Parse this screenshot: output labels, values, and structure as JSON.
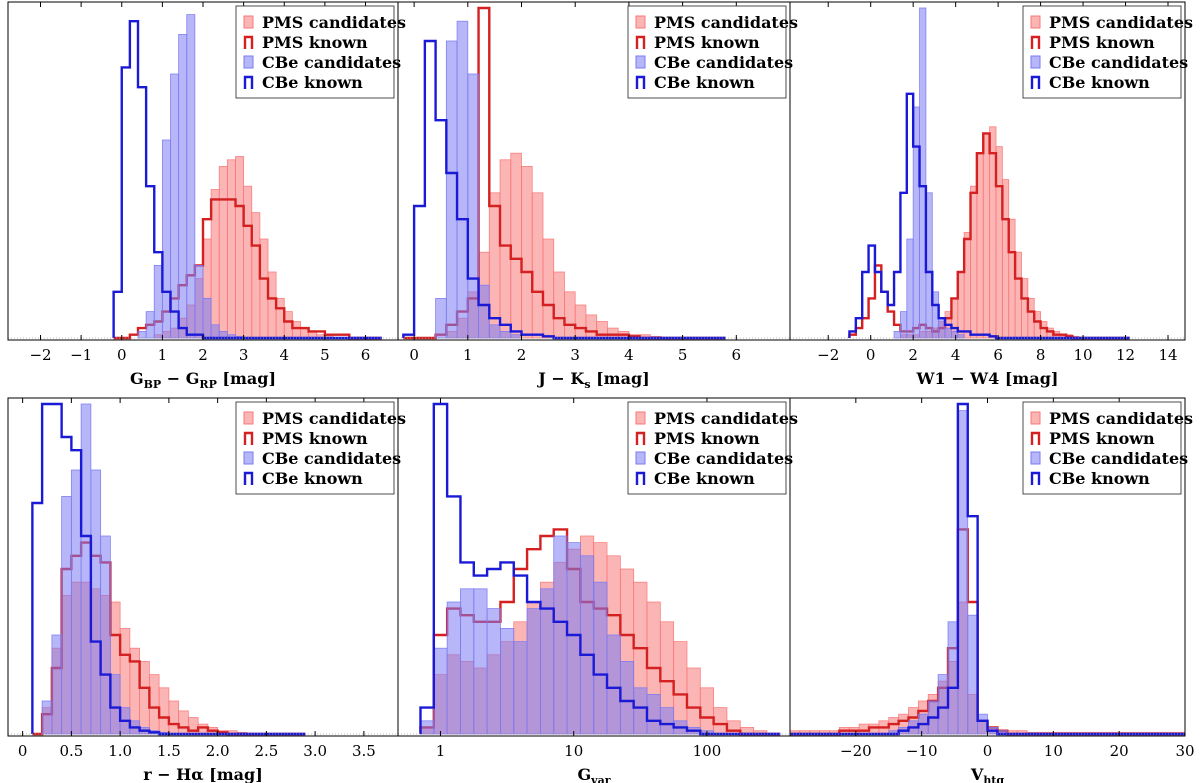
{
  "legend_labels": [
    "PMS candidates",
    "PMS known",
    "CBe candidates",
    "CBe known"
  ],
  "colors": {
    "pms_fill": "#f87878",
    "pms_edge": "#d42020",
    "cbe_fill": "#7a7af2",
    "cbe_edge": "#1a1ad6",
    "overlap": "#8a4aa4"
  },
  "chart_data": [
    {
      "type": "bar",
      "subtype": "histogram",
      "xlabel_main": "G",
      "xlabel_sub1": "BP",
      "xlabel_mid": " − G",
      "xlabel_sub2": "RP",
      "xlabel_unit": " [mag]",
      "xlim": [
        -2.8,
        6.8
      ],
      "ylim": [
        0,
        100
      ],
      "xticks": [
        -2,
        -1,
        0,
        1,
        2,
        3,
        4,
        5,
        6
      ],
      "xtick_labels": [
        "−2",
        "−1",
        "0",
        "1",
        "2",
        "3",
        "4",
        "5",
        "6"
      ],
      "series": [
        {
          "name": "PMS candidates",
          "kind": "filled",
          "x0": -0.2,
          "binw": 0.2,
          "values": [
            0,
            0,
            0,
            0,
            0,
            1,
            2,
            3,
            6,
            10,
            18,
            30,
            45,
            52,
            54,
            55,
            46,
            38,
            30,
            20,
            12,
            8,
            5,
            3,
            2,
            1,
            1,
            0,
            0,
            0,
            0,
            0,
            0
          ]
        },
        {
          "name": "PMS known",
          "kind": "step",
          "x0": -0.2,
          "binw": 0.2,
          "values": [
            0,
            0,
            1,
            3,
            4,
            5,
            8,
            12,
            16,
            19,
            22,
            36,
            42,
            42,
            42,
            40,
            34,
            28,
            18,
            12,
            9,
            5,
            3,
            3,
            2,
            2,
            1,
            1,
            1,
            0,
            0,
            0,
            0
          ]
        },
        {
          "name": "CBe candidates",
          "kind": "filled",
          "x0": -0.2,
          "binw": 0.2,
          "values": [
            0,
            0,
            0,
            2,
            8,
            22,
            60,
            80,
            92,
            98,
            22,
            12,
            4,
            2,
            1,
            0.5,
            0,
            0,
            0,
            0,
            0,
            0,
            0,
            0,
            0,
            0,
            0,
            0,
            0,
            0,
            0,
            0,
            0
          ]
        },
        {
          "name": "CBe known",
          "kind": "step",
          "x0": -0.2,
          "binw": 0.2,
          "values": [
            14,
            82,
            96,
            76,
            46,
            26,
            14,
            8,
            3,
            1,
            1,
            0,
            0,
            0,
            0,
            0,
            0,
            0,
            0,
            0,
            0,
            0,
            0,
            0,
            0,
            0,
            0,
            0,
            0,
            0,
            0,
            0,
            0
          ]
        }
      ]
    },
    {
      "type": "bar",
      "subtype": "histogram",
      "xlabel_main": "J − K",
      "xlabel_sub1": "s",
      "xlabel_mid": "",
      "xlabel_sub2": "",
      "xlabel_unit": " [mag]",
      "xlim": [
        -0.3,
        7.0
      ],
      "ylim": [
        0,
        100
      ],
      "xticks": [
        0,
        1,
        2,
        3,
        4,
        5,
        6
      ],
      "xtick_labels": [
        "0",
        "1",
        "2",
        "3",
        "4",
        "5",
        "6"
      ],
      "series": [
        {
          "name": "PMS candidates",
          "kind": "filled",
          "x0": -0.2,
          "binw": 0.2,
          "values": [
            0,
            0,
            0,
            0,
            2,
            6,
            14,
            26,
            44,
            54,
            56,
            52,
            44,
            30,
            20,
            14,
            10,
            7,
            5,
            3,
            2,
            1,
            1,
            0.5,
            0,
            0,
            0,
            0,
            0,
            0
          ]
        },
        {
          "name": "PMS known",
          "kind": "step",
          "x0": -0.2,
          "binw": 0.2,
          "values": [
            0,
            0,
            0,
            1,
            4,
            8,
            12,
            100,
            40,
            28,
            24,
            20,
            14,
            10,
            6,
            4,
            3,
            2,
            1,
            1,
            1,
            0.5,
            0,
            0,
            0,
            0,
            0,
            0,
            0,
            0
          ]
        },
        {
          "name": "CBe candidates",
          "kind": "filled",
          "x0": -0.2,
          "binw": 0.2,
          "values": [
            0,
            0,
            0,
            12,
            90,
            96,
            80,
            16,
            4,
            2,
            1,
            0,
            0,
            0,
            0,
            0,
            0,
            0,
            0,
            0,
            0,
            0,
            0,
            0,
            0,
            0,
            0,
            0,
            0,
            0
          ]
        },
        {
          "name": "CBe known",
          "kind": "step",
          "x0": -0.2,
          "binw": 0.2,
          "values": [
            1,
            40,
            90,
            66,
            50,
            36,
            18,
            10,
            6,
            4,
            2,
            1,
            1,
            0.5,
            0,
            0,
            0,
            0,
            0,
            0,
            0,
            0,
            0,
            0,
            0,
            0,
            0,
            0,
            0,
            0
          ]
        }
      ]
    },
    {
      "type": "bar",
      "subtype": "histogram",
      "xlabel_main": "W1 − W4",
      "xlabel_sub1": "",
      "xlabel_mid": "",
      "xlabel_sub2": "",
      "xlabel_unit": " [mag]",
      "xlim": [
        -3.8,
        14.8
      ],
      "ylim": [
        0,
        100
      ],
      "xticks": [
        -2,
        0,
        2,
        4,
        6,
        8,
        10,
        12,
        14
      ],
      "xtick_labels": [
        "−2",
        "0",
        "2",
        "4",
        "6",
        "8",
        "10",
        "12",
        "14"
      ],
      "series": [
        {
          "name": "PMS candidates",
          "kind": "filled",
          "x0": -1.0,
          "binw": 0.3,
          "values": [
            0,
            0,
            0,
            0,
            0,
            0,
            0,
            0,
            1,
            1,
            1,
            2,
            2,
            3,
            5,
            8,
            12,
            20,
            32,
            46,
            56,
            62,
            64,
            58,
            48,
            36,
            26,
            18,
            12,
            8,
            5,
            3,
            2,
            1,
            1,
            0.5,
            0,
            0,
            0,
            0,
            0,
            0,
            0,
            0
          ]
        },
        {
          "name": "PMS known",
          "kind": "step",
          "x0": -1.0,
          "binw": 0.3,
          "values": [
            1,
            3,
            6,
            12,
            22,
            14,
            8,
            4,
            2,
            2,
            3,
            4,
            3,
            2,
            3,
            6,
            12,
            20,
            30,
            44,
            56,
            62,
            56,
            46,
            36,
            26,
            18,
            12,
            8,
            5,
            3,
            2,
            1,
            1,
            0.5,
            0,
            0,
            0,
            0,
            0,
            0,
            0,
            0,
            0
          ]
        },
        {
          "name": "CBe candidates",
          "kind": "filled",
          "x0": -1.0,
          "binw": 0.3,
          "values": [
            0,
            0,
            0,
            0,
            0,
            0,
            0,
            2,
            8,
            30,
            70,
            100,
            44,
            14,
            6,
            3,
            2,
            1,
            0,
            0,
            0,
            0,
            0,
            0,
            0,
            0,
            0,
            0,
            0,
            0,
            0,
            0,
            0,
            0,
            0,
            0,
            0,
            0,
            0,
            0,
            0,
            0,
            0,
            0
          ]
        },
        {
          "name": "CBe known",
          "kind": "step",
          "x0": -1.0,
          "binw": 0.3,
          "values": [
            2,
            6,
            20,
            28,
            20,
            14,
            10,
            20,
            44,
            74,
            58,
            46,
            20,
            10,
            6,
            4,
            3,
            2,
            2,
            1,
            1,
            1,
            0.5,
            0,
            0,
            0,
            0,
            0,
            0,
            0,
            0,
            0,
            0,
            0,
            0,
            0,
            0,
            0,
            0,
            0,
            0,
            0,
            0,
            0
          ]
        }
      ]
    },
    {
      "type": "bar",
      "subtype": "histogram",
      "xlabel_main": "r − H",
      "xlabel_sub1": "",
      "xlabel_mid": "α",
      "xlabel_sub2": "",
      "xlabel_unit": " [mag]",
      "xlim": [
        -0.15,
        3.85
      ],
      "ylim": [
        0,
        100
      ],
      "xticks": [
        0,
        0.5,
        1.0,
        1.5,
        2.0,
        2.5,
        3.0,
        3.5
      ],
      "xtick_labels": [
        "0",
        "0.5",
        "1.0",
        "1.5",
        "2.0",
        "2.5",
        "3.0",
        "3.5"
      ],
      "series": [
        {
          "name": "PMS candidates",
          "kind": "filled",
          "x0": 0.1,
          "binw": 0.1,
          "values": [
            0,
            8,
            26,
            42,
            46,
            46,
            44,
            42,
            40,
            32,
            26,
            22,
            18,
            14,
            10,
            7,
            5,
            3,
            2,
            1,
            1,
            0.5,
            0,
            0,
            0,
            0,
            0,
            0
          ]
        },
        {
          "name": "PMS known",
          "kind": "step",
          "x0": 0.1,
          "binw": 0.1,
          "values": [
            0,
            6,
            20,
            50,
            54,
            58,
            54,
            52,
            30,
            24,
            22,
            14,
            8,
            5,
            3,
            2,
            1,
            2,
            1,
            0.5,
            0,
            0,
            0,
            0,
            0,
            0,
            0,
            0
          ]
        },
        {
          "name": "CBe candidates",
          "kind": "filled",
          "x0": 0.1,
          "binw": 0.1,
          "values": [
            0,
            10,
            30,
            72,
            80,
            100,
            80,
            60,
            18,
            8,
            4,
            2,
            1,
            0.5,
            0,
            0,
            0,
            0,
            0,
            0,
            0,
            0,
            0,
            0,
            0,
            0,
            0,
            0
          ]
        },
        {
          "name": "CBe known",
          "kind": "step",
          "x0": 0.1,
          "binw": 0.1,
          "values": [
            70,
            100,
            100,
            90,
            86,
            60,
            28,
            18,
            8,
            4,
            2,
            1,
            0.5,
            0,
            0,
            0,
            0,
            0,
            0,
            0,
            0,
            0,
            0,
            0,
            0,
            0,
            0,
            0
          ]
        }
      ]
    },
    {
      "type": "bar",
      "subtype": "histogram",
      "xscale": "log",
      "xlabel_main": "G",
      "xlabel_sub1": "var",
      "xlabel_mid": "",
      "xlabel_sub2": "",
      "xlabel_unit": "",
      "xlim": [
        0.48,
        420
      ],
      "ylim": [
        0,
        100
      ],
      "xticks": [
        1,
        10,
        100
      ],
      "xtick_labels": [
        "1",
        "10",
        "100"
      ],
      "series": [
        {
          "name": "PMS candidates",
          "kind": "filled",
          "logx0": -0.15,
          "logbinw": 0.1,
          "values": [
            2,
            18,
            24,
            22,
            20,
            24,
            28,
            34,
            40,
            46,
            52,
            56,
            60,
            58,
            54,
            50,
            46,
            40,
            34,
            28,
            20,
            14,
            8,
            4,
            2,
            1,
            0
          ]
        },
        {
          "name": "PMS known",
          "kind": "step",
          "logx0": -0.15,
          "logbinw": 0.1,
          "values": [
            2,
            30,
            38,
            36,
            34,
            34,
            40,
            50,
            56,
            60,
            62,
            50,
            40,
            38,
            36,
            30,
            26,
            20,
            16,
            12,
            8,
            5,
            3,
            1,
            0,
            0,
            0
          ]
        },
        {
          "name": "CBe candidates",
          "kind": "filled",
          "logx0": -0.15,
          "logbinw": 0.1,
          "values": [
            4,
            26,
            40,
            44,
            44,
            38,
            32,
            28,
            38,
            44,
            60,
            58,
            54,
            46,
            30,
            22,
            14,
            12,
            8,
            4,
            2,
            1,
            0,
            0,
            0,
            0,
            0
          ]
        },
        {
          "name": "CBe known",
          "kind": "step",
          "logx0": -0.15,
          "logbinw": 0.1,
          "values": [
            8,
            100,
            72,
            52,
            48,
            50,
            52,
            48,
            40,
            38,
            34,
            30,
            24,
            18,
            14,
            10,
            8,
            4,
            3,
            2,
            1,
            0,
            0,
            0,
            0,
            0,
            0
          ]
        }
      ]
    },
    {
      "type": "bar",
      "subtype": "histogram",
      "xlabel_main": "V",
      "xlabel_sub1": "htg",
      "xlabel_mid": "",
      "xlabel_sub2": "",
      "xlabel_unit": "",
      "xlim": [
        -30,
        30
      ],
      "ylim": [
        0,
        100
      ],
      "xticks": [
        -20,
        -10,
        0,
        10,
        20,
        30
      ],
      "xtick_labels": [
        "−20",
        "−10",
        "0",
        "10",
        "20",
        "30"
      ],
      "series": [
        {
          "name": "PMS candidates",
          "kind": "filled",
          "x0": -30,
          "binw": 1.5,
          "values": [
            1,
            1,
            1,
            1,
            1,
            2,
            2,
            3,
            3,
            4,
            5,
            6,
            8,
            10,
            12,
            16,
            22,
            40,
            12,
            4,
            2,
            1,
            1,
            1,
            0.5,
            0.5,
            0.5,
            0.5,
            0.5,
            0.5,
            0.5,
            0.5,
            0.5,
            0.5,
            0.5,
            0.5,
            0.5,
            0.5,
            0.5,
            0.5
          ]
        },
        {
          "name": "PMS known",
          "kind": "step",
          "x0": -30,
          "binw": 1.5,
          "values": [
            0,
            0,
            0,
            0,
            0,
            1,
            1,
            1,
            2,
            2,
            3,
            4,
            5,
            7,
            10,
            14,
            26,
            62,
            40,
            4,
            2,
            1,
            0,
            0,
            0,
            0,
            0,
            0,
            0,
            0,
            0,
            0,
            0,
            0,
            0,
            0,
            0,
            0,
            0,
            0
          ]
        },
        {
          "name": "CBe candidates",
          "kind": "filled",
          "x0": -30,
          "binw": 1.5,
          "values": [
            0,
            0,
            0,
            0,
            0,
            0,
            0,
            0,
            0,
            0,
            1,
            2,
            4,
            6,
            10,
            18,
            34,
            98,
            36,
            6,
            2,
            1,
            0,
            0,
            0,
            0,
            0,
            0,
            0,
            0,
            0,
            0,
            0,
            0,
            0,
            0,
            0,
            0,
            0,
            0
          ]
        },
        {
          "name": "CBe known",
          "kind": "step",
          "x0": -30,
          "binw": 1.5,
          "values": [
            0,
            0,
            0,
            0,
            0,
            0,
            0,
            0,
            0,
            0,
            0,
            1,
            2,
            3,
            5,
            8,
            14,
            100,
            66,
            4,
            1,
            0,
            0,
            0,
            0,
            0,
            0,
            0,
            0,
            0,
            0,
            0,
            0,
            0,
            0,
            0,
            0,
            0,
            0,
            0
          ]
        }
      ]
    }
  ]
}
